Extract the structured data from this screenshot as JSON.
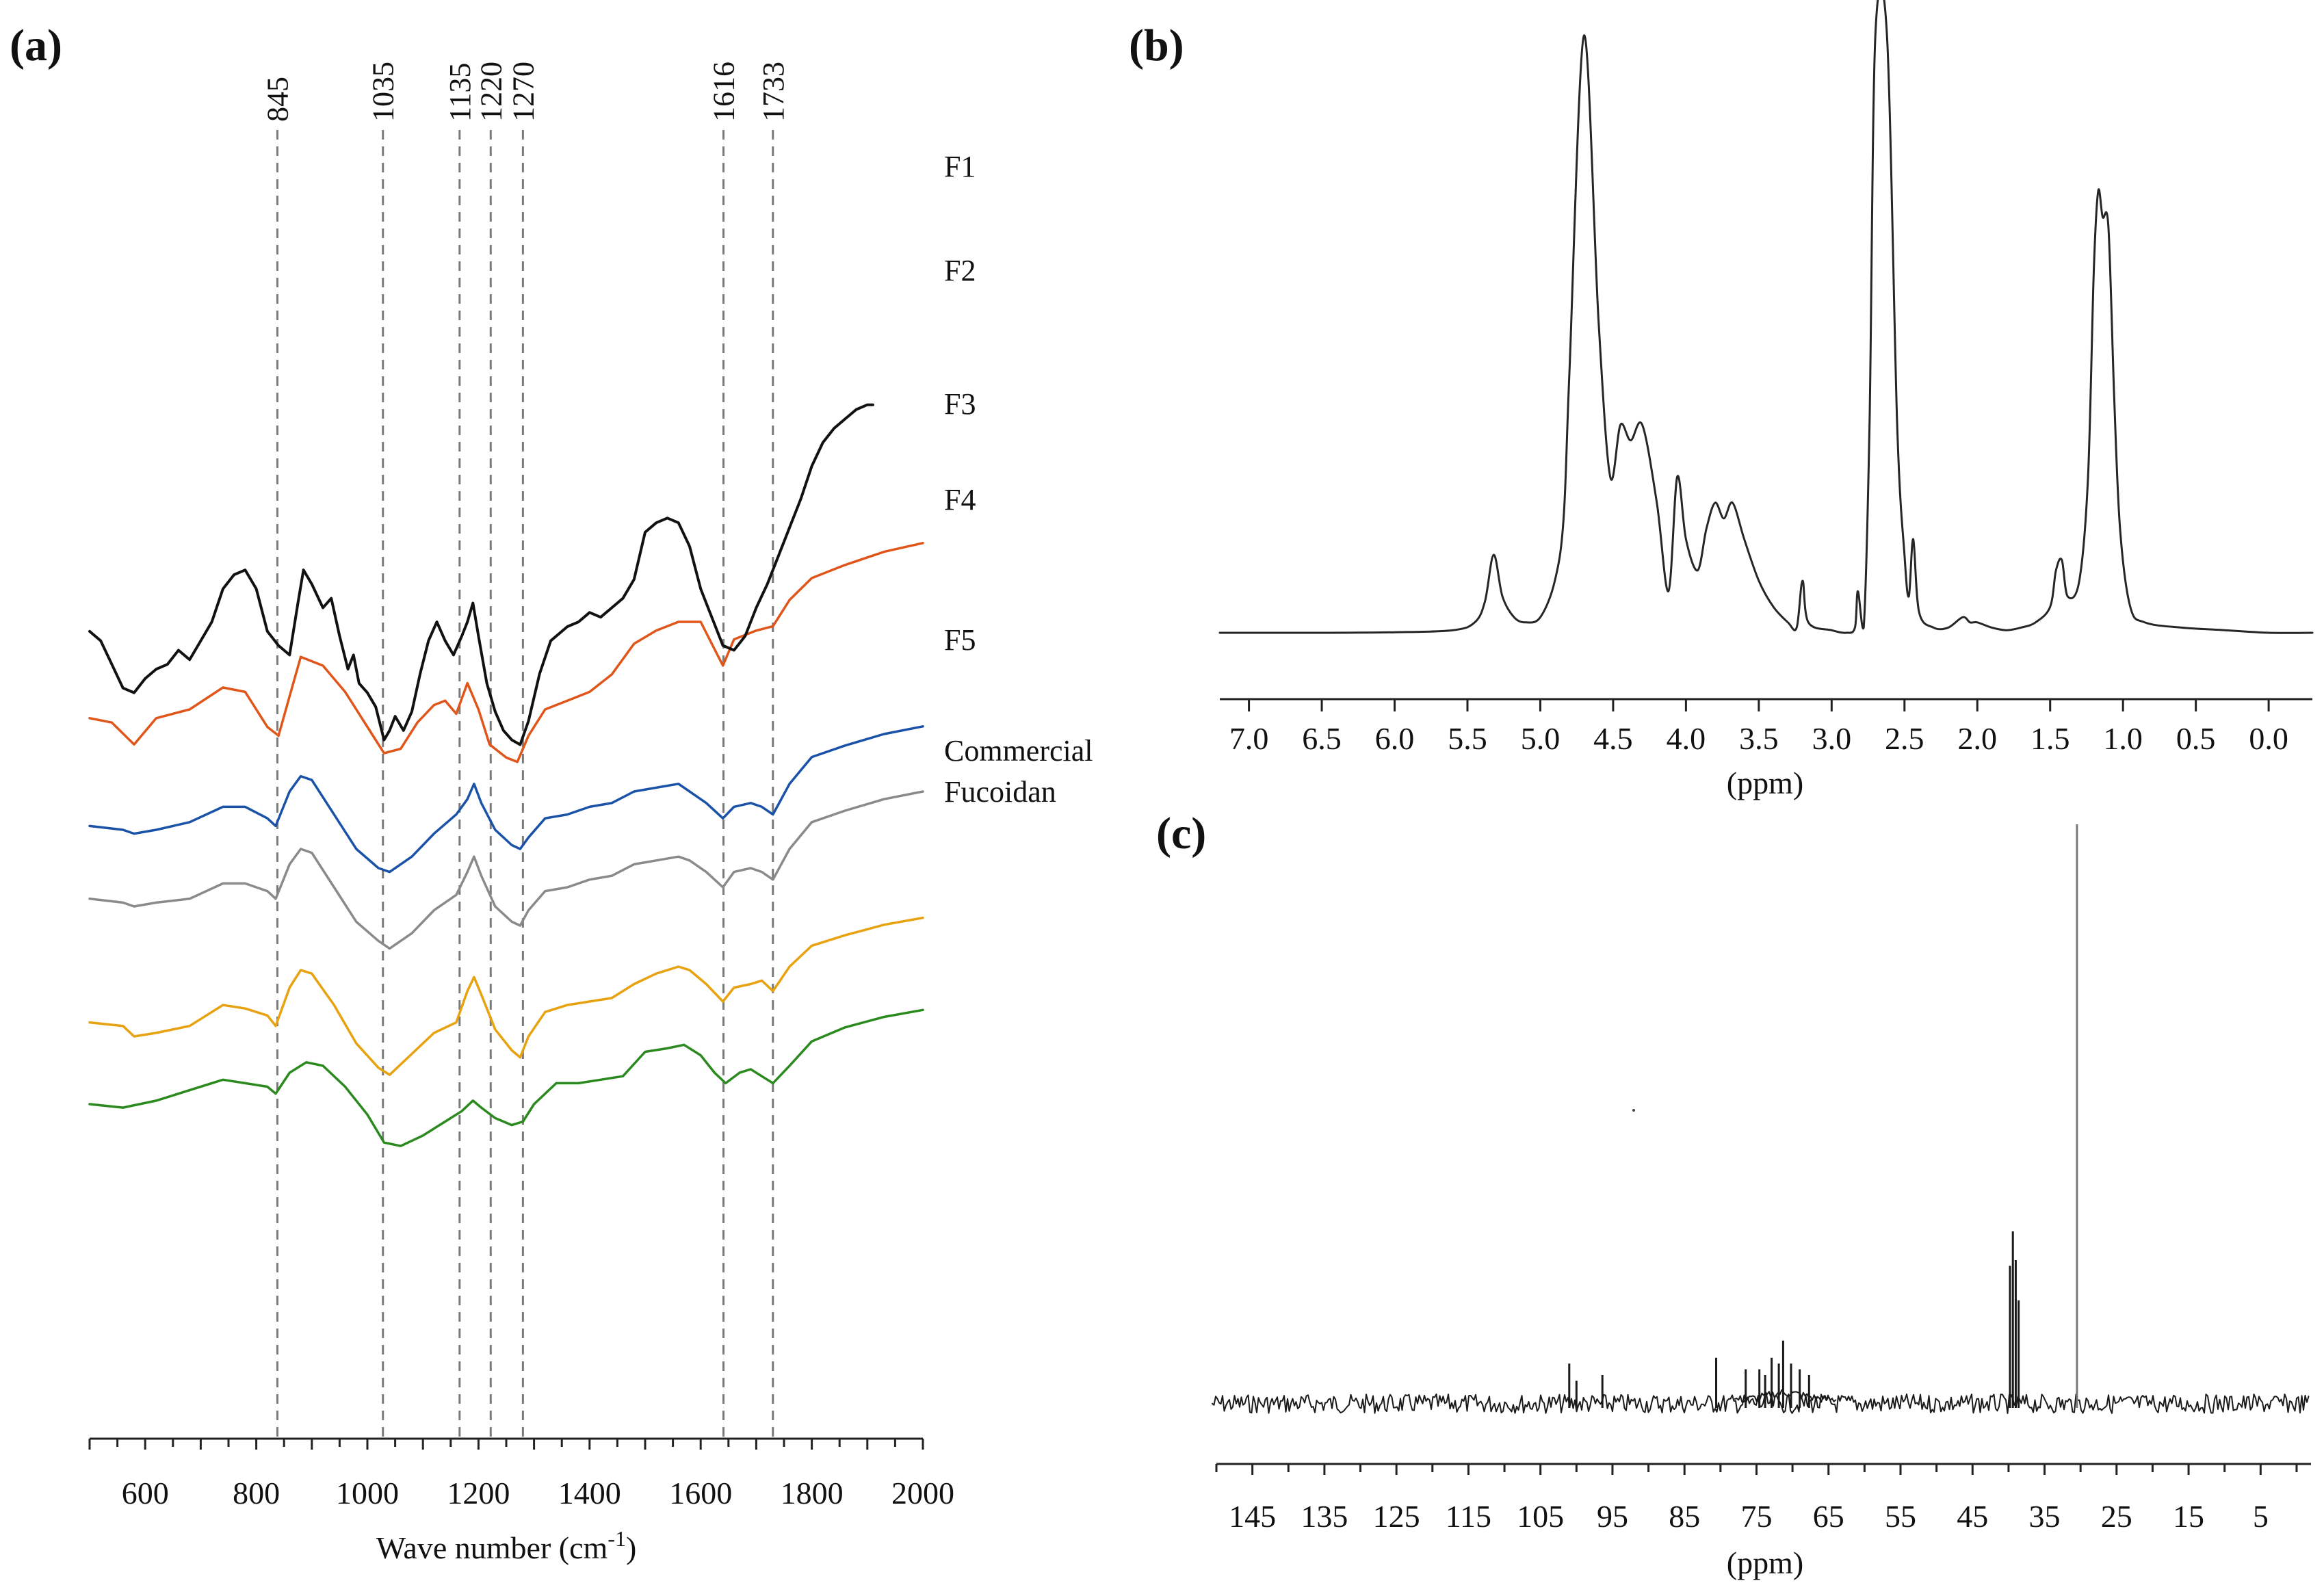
{
  "chart_data": [
    {
      "panel": "(a)",
      "type": "line",
      "title": "",
      "xlabel": "Wave number (cm-1)",
      "xlabel_main": "Wave number (cm",
      "xlabel_sup": "-1",
      "xlabel_close": ")",
      "ylabel": "",
      "xlim": [
        500,
        2000
      ],
      "ylim": [
        0,
        100
      ],
      "xticks": [
        600,
        800,
        1000,
        1200,
        1400,
        1600,
        1800,
        2000
      ],
      "reference_lines": [
        845,
        1035,
        1135,
        1220,
        1270,
        1616,
        1733
      ],
      "reference_positions": [
        838,
        1028,
        1166,
        1222,
        1280,
        1641,
        1730
      ],
      "series": [
        {
          "name": "F1",
          "label_lines": [
            "F1"
          ],
          "color": "#2b8a1e",
          "x": [
            500,
            560,
            620,
            680,
            740,
            780,
            820,
            835,
            860,
            890,
            920,
            960,
            1000,
            1030,
            1060,
            1100,
            1140,
            1170,
            1190,
            1205,
            1230,
            1260,
            1280,
            1300,
            1340,
            1380,
            1420,
            1460,
            1500,
            1540,
            1570,
            1600,
            1625,
            1645,
            1670,
            1690,
            1710,
            1730,
            1760,
            1800,
            1860,
            1930,
            2000
          ],
          "y": [
            70,
            69,
            71,
            74,
            77,
            76,
            75,
            73,
            79,
            82,
            81,
            75,
            67,
            59,
            58,
            61,
            65,
            68,
            71,
            69,
            66,
            64,
            65,
            70,
            76,
            76,
            77,
            78,
            85,
            86,
            87,
            84,
            79,
            76,
            79,
            80,
            78,
            76,
            81,
            88,
            92,
            95,
            97
          ]
        },
        {
          "name": "F2",
          "label_lines": [
            "F2"
          ],
          "color": "#e8a20f",
          "x": [
            500,
            560,
            580,
            620,
            680,
            740,
            780,
            820,
            835,
            860,
            880,
            900,
            940,
            980,
            1020,
            1040,
            1080,
            1120,
            1160,
            1180,
            1192,
            1205,
            1230,
            1260,
            1275,
            1290,
            1320,
            1360,
            1400,
            1440,
            1480,
            1520,
            1560,
            1580,
            1610,
            1640,
            1660,
            1690,
            1710,
            1730,
            1760,
            1800,
            1860,
            1930,
            2000
          ],
          "y": [
            64,
            63,
            60,
            61,
            63,
            69,
            68,
            66,
            63,
            74,
            79,
            78,
            69,
            58,
            51,
            49,
            55,
            61,
            64,
            73,
            77,
            72,
            62,
            56,
            54,
            60,
            67,
            69,
            70,
            71,
            75,
            78,
            80,
            79,
            75,
            70,
            74,
            75,
            76,
            73,
            80,
            86,
            89,
            92,
            94
          ]
        },
        {
          "name": "F3",
          "label_lines": [
            "F3"
          ],
          "color": "#8a8a8a",
          "x": [
            500,
            560,
            580,
            620,
            680,
            740,
            780,
            820,
            835,
            860,
            880,
            900,
            940,
            980,
            1020,
            1040,
            1080,
            1120,
            1160,
            1180,
            1192,
            1205,
            1230,
            1260,
            1275,
            1290,
            1320,
            1360,
            1400,
            1440,
            1480,
            1520,
            1560,
            1580,
            1610,
            1640,
            1660,
            1690,
            1710,
            1730,
            1760,
            1800,
            1860,
            1930,
            2000
          ],
          "y": [
            57,
            56,
            55,
            56,
            57,
            61,
            61,
            59,
            57,
            66,
            70,
            69,
            60,
            51,
            46,
            44,
            48,
            54,
            58,
            64,
            68,
            63,
            55,
            51,
            50,
            54,
            59,
            60,
            62,
            63,
            66,
            67,
            68,
            67,
            64,
            60,
            64,
            65,
            64,
            62,
            70,
            77,
            80,
            83,
            85
          ]
        },
        {
          "name": "F4",
          "label_lines": [
            "F4"
          ],
          "color": "#1a52a8",
          "x": [
            500,
            560,
            580,
            620,
            680,
            740,
            780,
            820,
            835,
            860,
            880,
            900,
            940,
            980,
            1020,
            1040,
            1080,
            1120,
            1160,
            1180,
            1192,
            1205,
            1230,
            1260,
            1275,
            1290,
            1320,
            1360,
            1400,
            1440,
            1480,
            1520,
            1560,
            1580,
            1610,
            1640,
            1660,
            1690,
            1710,
            1730,
            1760,
            1800,
            1860,
            1930,
            2000
          ],
          "y": [
            51,
            50,
            49,
            50,
            52,
            56,
            56,
            53,
            51,
            60,
            64,
            63,
            54,
            45,
            40,
            39,
            43,
            49,
            54,
            58,
            62,
            57,
            50,
            46,
            45,
            48,
            53,
            54,
            56,
            57,
            60,
            61,
            62,
            60,
            57,
            53,
            56,
            57,
            56,
            54,
            62,
            69,
            72,
            75,
            77
          ]
        },
        {
          "name": "F5",
          "label_lines": [
            "F5"
          ],
          "color": "#e0561a",
          "x": [
            500,
            540,
            580,
            620,
            680,
            740,
            780,
            800,
            820,
            840,
            860,
            880,
            920,
            960,
            1000,
            1030,
            1060,
            1090,
            1120,
            1140,
            1160,
            1180,
            1200,
            1220,
            1250,
            1270,
            1290,
            1320,
            1360,
            1400,
            1440,
            1480,
            1520,
            1560,
            1600,
            1620,
            1640,
            1660,
            1700,
            1730,
            1760,
            1800,
            1860,
            1930,
            2000
          ],
          "y": [
            38,
            37,
            32,
            38,
            40,
            45,
            44,
            40,
            36,
            34,
            43,
            52,
            50,
            44,
            36,
            30,
            31,
            37,
            41,
            42,
            39,
            46,
            40,
            32,
            29,
            28,
            34,
            40,
            42,
            44,
            48,
            55,
            58,
            60,
            60,
            55,
            50,
            56,
            58,
            59,
            65,
            70,
            73,
            76,
            78
          ]
        },
        {
          "name": "Commercial Fucoidan",
          "label_lines": [
            "Commercial",
            "Fucoidan"
          ],
          "color": "#111111",
          "x": [
            500,
            520,
            540,
            560,
            580,
            600,
            620,
            640,
            660,
            680,
            700,
            720,
            740,
            760,
            780,
            800,
            820,
            840,
            860,
            875,
            885,
            900,
            920,
            935,
            950,
            965,
            975,
            985,
            1000,
            1015,
            1030,
            1040,
            1050,
            1065,
            1080,
            1095,
            1110,
            1125,
            1140,
            1155,
            1170,
            1180,
            1190,
            1200,
            1215,
            1230,
            1245,
            1260,
            1275,
            1290,
            1310,
            1330,
            1360,
            1380,
            1400,
            1420,
            1440,
            1460,
            1480,
            1500,
            1520,
            1540,
            1560,
            1580,
            1600,
            1620,
            1640,
            1660,
            1680,
            1700,
            1720,
            1740,
            1760,
            1780,
            1800,
            1820,
            1840,
            1860,
            1880,
            1900,
            1910
          ],
          "y": [
            29,
            27,
            22,
            17,
            16,
            19,
            21,
            22,
            25,
            23,
            27,
            31,
            38,
            41,
            42,
            38,
            29,
            26,
            24,
            35,
            42,
            39,
            34,
            36,
            28,
            21,
            24,
            18,
            16,
            13,
            6,
            8,
            11,
            8,
            12,
            20,
            27,
            31,
            27,
            24,
            28,
            31,
            35,
            28,
            18,
            12,
            8,
            6,
            5,
            10,
            20,
            27,
            30,
            31,
            33,
            32,
            34,
            36,
            40,
            50,
            52,
            53,
            52,
            47,
            38,
            32,
            26,
            25,
            28,
            34,
            39,
            45,
            51,
            57,
            64,
            69,
            72,
            74,
            76,
            77,
            77
          ]
        }
      ]
    },
    {
      "panel": "(b)",
      "type": "line",
      "title": "",
      "xlabel": "(ppm)",
      "ylabel": "",
      "xlim": [
        7.2,
        -0.3
      ],
      "ylim": [
        0,
        100
      ],
      "xticks": [
        7.0,
        6.5,
        6.0,
        5.5,
        5.0,
        4.5,
        4.0,
        3.5,
        3.0,
        2.5,
        2.0,
        1.5,
        1.0,
        0.5,
        0.0
      ],
      "xtick_labels": [
        "7.0",
        "6.5",
        "6.0",
        "5.5",
        "5.0",
        "4.5",
        "4.0",
        "3.5",
        "3.0",
        "2.5",
        "2.0",
        "1.5",
        "1.0",
        "0.5",
        "0.0"
      ],
      "series": [
        {
          "name": "1H NMR spectrum",
          "color": "#222222",
          "x": [
            7.2,
            6.5,
            6.0,
            5.6,
            5.45,
            5.38,
            5.32,
            5.26,
            5.18,
            5.1,
            5.0,
            4.9,
            4.84,
            4.8,
            4.7,
            4.6,
            4.52,
            4.45,
            4.38,
            4.3,
            4.2,
            4.12,
            4.06,
            4.0,
            3.92,
            3.86,
            3.8,
            3.74,
            3.68,
            3.6,
            3.5,
            3.4,
            3.3,
            3.24,
            3.2,
            3.16,
            3.0,
            2.9,
            2.84,
            2.82,
            2.78,
            2.74,
            2.7,
            2.62,
            2.55,
            2.5,
            2.47,
            2.44,
            2.4,
            2.3,
            2.2,
            2.1,
            2.05,
            2.0,
            1.9,
            1.8,
            1.7,
            1.6,
            1.5,
            1.46,
            1.42,
            1.38,
            1.3,
            1.24,
            1.2,
            1.17,
            1.14,
            1.1,
            1.06,
            1.02,
            0.95,
            0.85,
            0.6,
            0.3,
            0.0,
            -0.3
          ],
          "y": [
            0,
            0,
            0.1,
            0.5,
            2,
            6,
            15,
            7,
            3,
            2,
            3,
            10,
            22,
            50,
            100,
            60,
            30,
            40,
            37,
            40,
            25,
            8,
            30,
            18,
            12,
            20,
            25,
            22,
            25,
            18,
            10,
            5,
            2,
            1,
            10,
            2,
            0.5,
            0,
            1,
            8,
            1,
            40,
            100,
            100,
            40,
            15,
            7,
            18,
            4,
            1,
            1,
            3,
            2,
            2,
            1,
            0.5,
            1,
            2,
            5,
            12,
            14,
            7,
            10,
            30,
            70,
            85,
            80,
            78,
            45,
            20,
            5,
            2,
            1,
            0.5,
            0,
            0
          ]
        }
      ],
      "peak_clip_pct": 100
    },
    {
      "panel": "(c)",
      "type": "line",
      "title": "",
      "xlabel": "(ppm)",
      "ylabel": "",
      "xlim": [
        150,
        -2
      ],
      "ylim": [
        0,
        100
      ],
      "xticks": [
        145,
        135,
        125,
        115,
        105,
        95,
        85,
        75,
        65,
        55,
        45,
        35,
        25,
        15,
        5
      ],
      "xtick_labels": [
        "145",
        "135",
        "125",
        "115",
        "105",
        "95",
        "85",
        "75",
        "65",
        "55",
        "45",
        "35",
        "25",
        "15",
        "5"
      ],
      "peaks": [
        {
          "ppm": 101,
          "height": 7
        },
        {
          "ppm": 100,
          "height": 4
        },
        {
          "ppm": 96.4,
          "height": 5
        },
        {
          "ppm": 80.6,
          "height": 8
        },
        {
          "ppm": 76.5,
          "height": 6
        },
        {
          "ppm": 74.6,
          "height": 6
        },
        {
          "ppm": 73.8,
          "height": 5
        },
        {
          "ppm": 72.9,
          "height": 8
        },
        {
          "ppm": 71.9,
          "height": 7
        },
        {
          "ppm": 71.3,
          "height": 11
        },
        {
          "ppm": 70.2,
          "height": 7
        },
        {
          "ppm": 69.0,
          "height": 6
        },
        {
          "ppm": 67.7,
          "height": 5
        },
        {
          "ppm": 39.8,
          "height": 24
        },
        {
          "ppm": 39.4,
          "height": 30
        },
        {
          "ppm": 39.0,
          "height": 25
        },
        {
          "ppm": 38.6,
          "height": 18
        },
        {
          "ppm": 30.5,
          "height": 100
        }
      ]
    }
  ]
}
